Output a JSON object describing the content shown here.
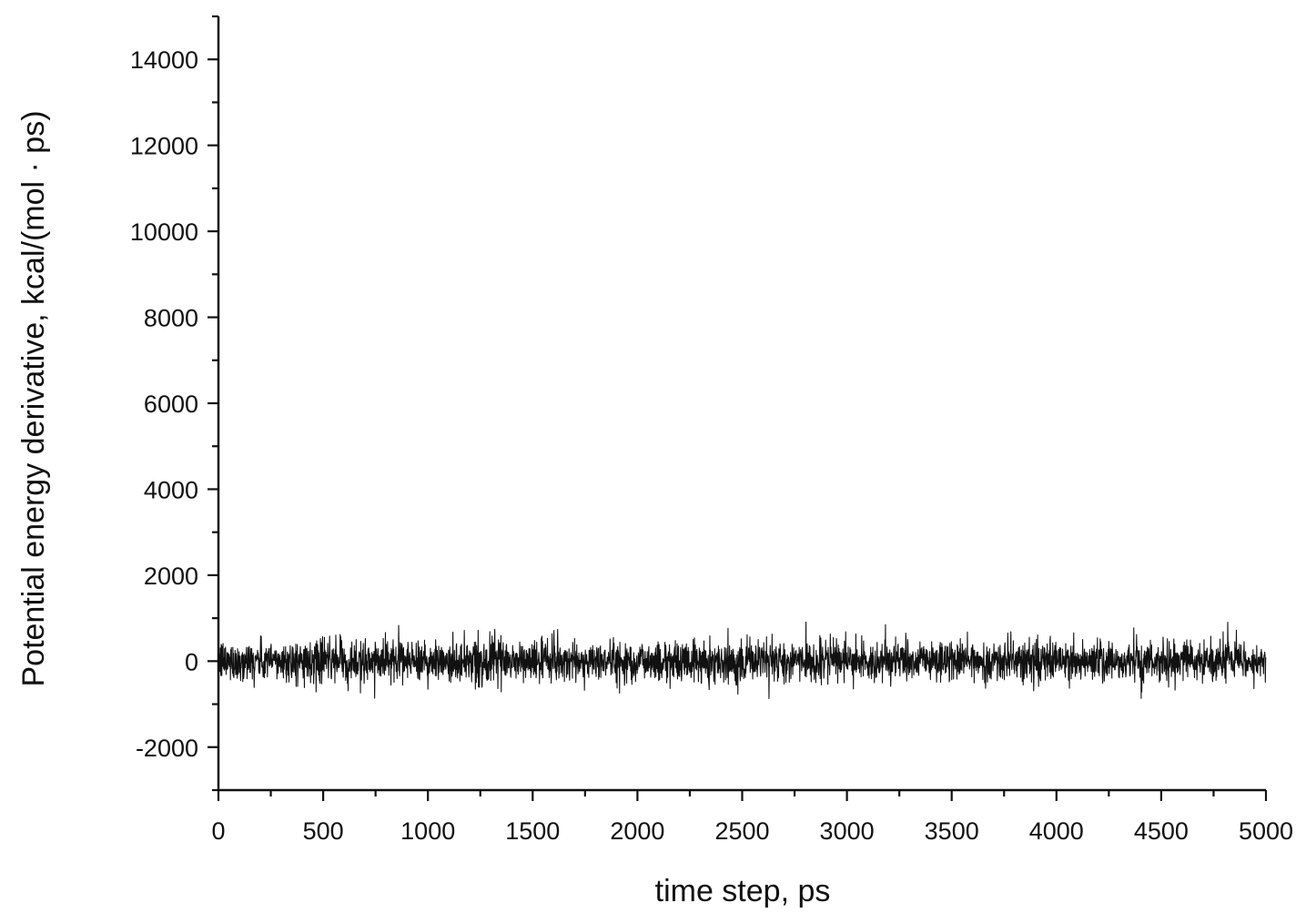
{
  "chart_data": {
    "type": "line",
    "title": "",
    "xlabel": "time step, ps",
    "ylabel": "Potential energy derivative, kcal/(mol · ps)",
    "xlim": [
      0,
      5000
    ],
    "ylim": [
      -3000,
      15000
    ],
    "x_ticks": [
      0,
      500,
      1000,
      1500,
      2000,
      2500,
      3000,
      3500,
      4000,
      4500,
      5000
    ],
    "y_ticks": [
      -2000,
      0,
      2000,
      4000,
      6000,
      8000,
      10000,
      12000,
      14000
    ],
    "x_tick_labels": [
      "0",
      "500",
      "1000",
      "1500",
      "2000",
      "2500",
      "3000",
      "3500",
      "4000",
      "4500",
      "5000"
    ],
    "y_tick_labels": [
      "-2000",
      "0",
      "2000",
      "4000",
      "6000",
      "8000",
      "10000",
      "12000",
      "14000"
    ],
    "grid": false,
    "legend": "none",
    "series": [
      {
        "color": "#111111",
        "x_start": 0,
        "x_end": 5000,
        "mean": 0,
        "typical_range": [
          -500,
          500
        ],
        "max_spike": 950,
        "min_spike": -900
      }
    ]
  }
}
